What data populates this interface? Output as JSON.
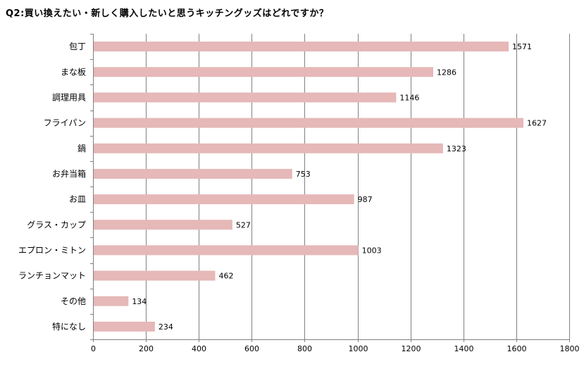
{
  "chart_data": {
    "type": "bar",
    "orientation": "horizontal",
    "title": "Q2:買い換えたい・新しく購入したいと思うキッチングッズはどれですか？",
    "categories": [
      "包丁",
      "まな板",
      "調理用具",
      "フライパン",
      "鍋",
      "お弁当箱",
      "お皿",
      "グラス・カップ",
      "エプロン・ミトン",
      "ランチョンマット",
      "その他",
      "特になし"
    ],
    "values": [
      1571,
      1286,
      1146,
      1627,
      1323,
      753,
      987,
      527,
      1003,
      462,
      134,
      234
    ],
    "xlim": [
      0,
      1800
    ],
    "xticks": [
      0,
      200,
      400,
      600,
      800,
      1000,
      1200,
      1400,
      1600,
      1800
    ],
    "xticks_labels": [
      "0",
      "200",
      "400",
      "600",
      "800",
      "1000",
      "1200",
      "1400",
      "1600",
      "1800"
    ],
    "grid": true,
    "bar_color": "#e6b8b8",
    "grid_color": "#808080"
  }
}
